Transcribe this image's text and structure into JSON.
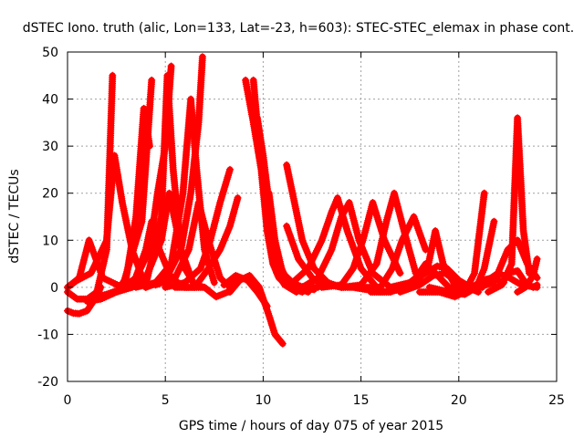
{
  "chart_data": {
    "type": "line",
    "title": "dSTEC Iono. truth (alic, Lon=133, Lat=-23, h=603): STEC-STEC_elemax in phase cont.",
    "xlabel": "GPS time / hours of day 075 of year 2015",
    "ylabel": "dSTEC  / TECUs",
    "xlim": [
      0,
      25
    ],
    "ylim": [
      -20,
      50
    ],
    "xticks": [
      0,
      5,
      10,
      15,
      20,
      25
    ],
    "yticks": [
      -20,
      -10,
      0,
      10,
      20,
      30,
      40,
      50
    ],
    "grid": true,
    "legend": "none",
    "marker": "plus",
    "color": "#ff0000",
    "series": [
      {
        "x": [
          0.0,
          0.3,
          0.6,
          1.0,
          1.4,
          1.7
        ],
        "y": [
          -5.0,
          -5.5,
          -5.6,
          -5.0,
          -2.5,
          0.0
        ]
      },
      {
        "x": [
          0.0,
          0.5,
          1.0,
          1.5,
          2.0,
          2.3
        ],
        "y": [
          -1.0,
          -2.5,
          -2.5,
          -1.0,
          8.0,
          45.0
        ]
      },
      {
        "x": [
          0.0,
          0.6,
          1.1,
          1.8,
          2.8,
          3.8,
          4.3
        ],
        "y": [
          0.0,
          2.0,
          10.0,
          2.0,
          0.0,
          14.0,
          44.0
        ]
      },
      {
        "x": [
          0.0,
          0.5,
          1.2,
          2.0,
          2.4,
          2.8,
          3.3,
          4.0
        ],
        "y": [
          0.0,
          1.5,
          3.0,
          10.0,
          28.0,
          18.0,
          8.0,
          0.0
        ]
      },
      {
        "x": [
          1.0,
          1.7,
          2.5,
          3.0,
          3.5,
          3.9,
          4.2
        ],
        "y": [
          -3.0,
          -2.5,
          -1.0,
          2.0,
          15.0,
          38.0,
          30.0
        ]
      },
      {
        "x": [
          1.5,
          2.5,
          3.3,
          4.0,
          4.3,
          4.7,
          5.3,
          6.0
        ],
        "y": [
          -2.0,
          -1.0,
          0.0,
          8.0,
          14.0,
          8.0,
          2.0,
          0.0
        ]
      },
      {
        "x": [
          2.0,
          3.0,
          4.0,
          4.8,
          5.1,
          5.4,
          5.8,
          6.5
        ],
        "y": [
          -1.5,
          0.0,
          0.5,
          15.0,
          45.0,
          25.0,
          8.0,
          0.0
        ]
      },
      {
        "x": [
          2.5,
          3.5,
          4.2,
          4.6,
          5.0,
          5.3
        ],
        "y": [
          -1.0,
          2.0,
          8.0,
          20.0,
          30.0,
          47.0
        ]
      },
      {
        "x": [
          3.0,
          4.0,
          4.8,
          5.2,
          5.5,
          6.0,
          6.5,
          7.0
        ],
        "y": [
          0.0,
          2.0,
          10.0,
          20.0,
          14.0,
          4.0,
          0.5,
          0.0
        ]
      },
      {
        "x": [
          3.5,
          4.5,
          5.3,
          5.9,
          6.3,
          6.6,
          7.0,
          7.5
        ],
        "y": [
          0.0,
          1.0,
          5.0,
          20.0,
          40.0,
          25.0,
          8.0,
          1.0
        ]
      },
      {
        "x": [
          4.0,
          5.0,
          5.8,
          6.3,
          6.7,
          6.9
        ],
        "y": [
          0.0,
          1.5,
          8.0,
          20.0,
          35.0,
          49.0
        ]
      },
      {
        "x": [
          4.5,
          5.5,
          6.2,
          6.7,
          7.2,
          7.8,
          8.3
        ],
        "y": [
          0.5,
          2.0,
          8.0,
          18.0,
          10.0,
          2.0,
          0.0
        ]
      },
      {
        "x": [
          5.0,
          6.0,
          6.8,
          7.3,
          7.8,
          8.3
        ],
        "y": [
          0.0,
          1.0,
          4.0,
          10.0,
          18.0,
          25.0
        ]
      },
      {
        "x": [
          5.5,
          6.5,
          7.2,
          7.8,
          8.3,
          8.7
        ],
        "y": [
          0.0,
          0.0,
          4.0,
          8.0,
          13.0,
          19.0
        ]
      },
      {
        "x": [
          6.0,
          7.0,
          7.6,
          8.2,
          8.8
        ],
        "y": [
          0.0,
          0.0,
          -2.0,
          -1.0,
          2.0
        ]
      },
      {
        "x": [
          8.3,
          8.8,
          9.3,
          9.8,
          10.3,
          10.6,
          11.0
        ],
        "y": [
          -1.0,
          1.5,
          2.5,
          0.0,
          -6.0,
          -10.0,
          -12.0
        ]
      },
      {
        "x": [
          8.0,
          8.6,
          9.2,
          9.7,
          10.2
        ],
        "y": [
          0.5,
          2.5,
          1.5,
          -1.0,
          -4.0
        ]
      },
      {
        "x": [
          9.1,
          9.5,
          9.9,
          10.2,
          10.5,
          10.8,
          11.3,
          12.0
        ],
        "y": [
          44.0,
          35.0,
          25.0,
          12.0,
          5.0,
          2.0,
          0.0,
          -1.0
        ]
      },
      {
        "x": [
          9.5,
          9.8,
          10.1,
          10.4,
          10.7,
          11.1,
          11.7
        ],
        "y": [
          44.0,
          30.0,
          18.0,
          8.0,
          3.0,
          0.5,
          -1.0
        ]
      },
      {
        "x": [
          9.7,
          10.0,
          10.3,
          10.6,
          11.0,
          11.6,
          12.3
        ],
        "y": [
          36.0,
          28.0,
          18.0,
          9.0,
          3.0,
          0.0,
          -1.0
        ]
      },
      {
        "x": [
          10.0,
          10.4,
          10.8,
          11.3,
          12.0,
          12.8
        ],
        "y": [
          22.0,
          12.0,
          5.0,
          1.0,
          0.0,
          0.0
        ]
      },
      {
        "x": [
          10.3,
          10.6,
          11.0,
          11.5,
          12.2
        ],
        "y": [
          20.0,
          10.0,
          3.0,
          0.5,
          0.0
        ]
      },
      {
        "x": [
          10.5,
          11.0,
          11.5,
          12.0,
          12.6
        ],
        "y": [
          10.0,
          3.0,
          1.0,
          0.0,
          -0.5
        ]
      },
      {
        "x": [
          11.2,
          11.6,
          12.0,
          12.6,
          13.3,
          14.0
        ],
        "y": [
          26.0,
          18.0,
          10.0,
          4.0,
          1.0,
          0.0
        ]
      },
      {
        "x": [
          11.2,
          11.8,
          12.6,
          13.4,
          14.0,
          14.6,
          15.3
        ],
        "y": [
          13.0,
          6.0,
          1.5,
          0.5,
          0.0,
          0.0,
          -0.5
        ]
      },
      {
        "x": [
          11.5,
          12.3,
          13.0,
          13.5,
          13.8,
          14.3,
          15.0,
          15.8
        ],
        "y": [
          1.0,
          4.0,
          10.0,
          16.0,
          19.0,
          12.0,
          4.0,
          0.0
        ]
      },
      {
        "x": [
          12.0,
          12.8,
          13.5,
          14.0,
          14.4,
          14.9,
          15.6,
          16.5
        ],
        "y": [
          0.0,
          2.0,
          8.0,
          15.0,
          18.0,
          10.0,
          3.0,
          0.0
        ]
      },
      {
        "x": [
          13.0,
          14.0,
          14.6,
          15.1,
          15.6,
          16.2,
          17.0
        ],
        "y": [
          0.0,
          0.5,
          4.0,
          10.0,
          18.0,
          10.0,
          3.0
        ]
      },
      {
        "x": [
          14.0,
          15.0,
          15.8,
          16.3,
          16.7,
          17.2,
          17.8
        ],
        "y": [
          0.0,
          0.5,
          5.0,
          14.0,
          20.0,
          12.0,
          3.0
        ]
      },
      {
        "x": [
          15.0,
          16.0,
          16.6,
          17.1,
          17.7,
          18.3
        ],
        "y": [
          0.0,
          0.0,
          4.0,
          10.0,
          15.0,
          8.0
        ]
      },
      {
        "x": [
          15.5,
          16.5,
          17.2,
          17.8,
          18.3,
          18.8,
          19.5,
          20.5
        ],
        "y": [
          -1.0,
          -1.0,
          0.0,
          2.0,
          5.0,
          3.0,
          0.0,
          -1.0
        ]
      },
      {
        "x": [
          16.0,
          17.0,
          17.8,
          18.4,
          18.8,
          19.2,
          19.8,
          20.5
        ],
        "y": [
          -1.0,
          -0.5,
          1.0,
          4.0,
          12.0,
          5.0,
          0.5,
          -1.0
        ]
      },
      {
        "x": [
          16.5,
          17.5,
          18.3,
          18.9,
          19.4,
          20.0,
          20.6,
          21.2
        ],
        "y": [
          0.0,
          1.0,
          3.0,
          4.5,
          4.0,
          1.5,
          0.0,
          0.0
        ]
      },
      {
        "x": [
          17.0,
          18.0,
          18.7,
          19.3,
          19.8,
          20.4,
          21.0
        ],
        "y": [
          -1.0,
          0.5,
          2.5,
          3.0,
          1.5,
          0.0,
          -1.0
        ]
      },
      {
        "x": [
          18.0,
          19.0,
          19.8,
          20.3,
          20.8,
          21.3
        ],
        "y": [
          -1.0,
          -1.0,
          -2.0,
          -1.0,
          3.0,
          20.0
        ]
      },
      {
        "x": [
          18.5,
          19.5,
          20.3,
          20.9,
          21.3,
          21.8
        ],
        "y": [
          0.0,
          -1.0,
          -1.5,
          0.0,
          4.0,
          14.0
        ]
      },
      {
        "x": [
          19.0,
          20.0,
          20.7,
          21.2,
          21.7,
          22.3
        ],
        "y": [
          -1.0,
          -1.0,
          0.0,
          1.5,
          2.0,
          1.0
        ]
      },
      {
        "x": [
          20.5,
          21.3,
          22.0,
          22.6,
          23.2,
          24.0
        ],
        "y": [
          0.0,
          1.0,
          3.0,
          2.0,
          0.5,
          0.0
        ]
      },
      {
        "x": [
          21.0,
          21.8,
          22.5,
          23.0,
          23.5,
          24.0
        ],
        "y": [
          0.0,
          1.0,
          8.0,
          10.0,
          5.0,
          2.0
        ]
      },
      {
        "x": [
          21.5,
          22.2,
          22.7,
          23.0,
          23.3,
          23.6
        ],
        "y": [
          -1.0,
          0.5,
          5.0,
          36.0,
          12.0,
          3.0
        ]
      },
      {
        "x": [
          22.5,
          23.0,
          23.4,
          23.8,
          24.0
        ],
        "y": [
          3.0,
          3.5,
          1.0,
          0.0,
          0.5
        ]
      },
      {
        "x": [
          23.0,
          23.4,
          23.8,
          24.0
        ],
        "y": [
          -1.0,
          0.0,
          2.5,
          6.0
        ]
      }
    ]
  }
}
